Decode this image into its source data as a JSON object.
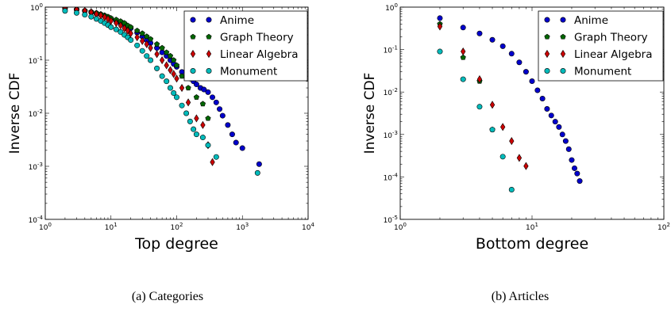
{
  "chart_data": [
    {
      "type": "scatter",
      "xlabel": "Top degree",
      "ylabel": "Inverse CDF",
      "xscale": "log",
      "yscale": "log",
      "xlim": [
        1,
        10000
      ],
      "ylim": [
        0.0001,
        1
      ],
      "xticks": [
        {
          "value": 1,
          "label": "10^0"
        },
        {
          "value": 10,
          "label": "10^1"
        },
        {
          "value": 100,
          "label": "10^2"
        },
        {
          "value": 1000,
          "label": "10^3"
        },
        {
          "value": 10000,
          "label": "10^4"
        }
      ],
      "yticks": [
        {
          "value": 0.0001,
          "label": "10^-4"
        },
        {
          "value": 0.001,
          "label": "10^-3"
        },
        {
          "value": 0.01,
          "label": "10^-2"
        },
        {
          "value": 0.1,
          "label": "10^-1"
        },
        {
          "value": 1,
          "label": "10^0"
        }
      ],
      "legend_position": "top-right",
      "caption": "(a) Categories",
      "series": [
        {
          "name": "Anime",
          "color": "#0000cc",
          "marker": "circle",
          "x": [
            2,
            3,
            4,
            5,
            6,
            7,
            8,
            9,
            10,
            12,
            14,
            16,
            18,
            20,
            25,
            30,
            35,
            40,
            50,
            60,
            70,
            80,
            90,
            100,
            120,
            140,
            160,
            180,
            200,
            230,
            260,
            300,
            350,
            400,
            450,
            500,
            600,
            700,
            800,
            1000,
            1800
          ],
          "y": [
            0.95,
            0.9,
            0.85,
            0.8,
            0.75,
            0.72,
            0.68,
            0.65,
            0.6,
            0.55,
            0.5,
            0.47,
            0.44,
            0.4,
            0.33,
            0.28,
            0.24,
            0.21,
            0.17,
            0.14,
            0.12,
            0.1,
            0.085,
            0.075,
            0.06,
            0.05,
            0.045,
            0.04,
            0.035,
            0.03,
            0.028,
            0.025,
            0.02,
            0.016,
            0.012,
            0.009,
            0.006,
            0.004,
            0.0028,
            0.0022,
            0.0011
          ]
        },
        {
          "name": "Graph Theory",
          "color": "#006600",
          "marker": "pentagon",
          "x": [
            2,
            3,
            4,
            5,
            6,
            7,
            8,
            9,
            10,
            12,
            14,
            16,
            18,
            20,
            25,
            30,
            35,
            40,
            50,
            60,
            70,
            80,
            90,
            100,
            120,
            150,
            200,
            250,
            300
          ],
          "y": [
            0.95,
            0.9,
            0.86,
            0.82,
            0.78,
            0.74,
            0.7,
            0.66,
            0.62,
            0.58,
            0.54,
            0.5,
            0.45,
            0.42,
            0.36,
            0.32,
            0.28,
            0.25,
            0.2,
            0.17,
            0.14,
            0.12,
            0.1,
            0.08,
            0.05,
            0.03,
            0.02,
            0.015,
            0.008
          ]
        },
        {
          "name": "Linear Algebra",
          "color": "#cc0000",
          "marker": "diamond",
          "x": [
            2,
            3,
            4,
            5,
            6,
            7,
            8,
            9,
            10,
            12,
            14,
            16,
            18,
            20,
            25,
            30,
            35,
            40,
            50,
            60,
            70,
            80,
            90,
            100,
            120,
            150,
            200,
            250,
            300,
            350
          ],
          "y": [
            0.95,
            0.9,
            0.85,
            0.8,
            0.74,
            0.7,
            0.65,
            0.6,
            0.55,
            0.5,
            0.45,
            0.4,
            0.36,
            0.32,
            0.27,
            0.23,
            0.2,
            0.17,
            0.13,
            0.1,
            0.08,
            0.065,
            0.055,
            0.045,
            0.03,
            0.016,
            0.008,
            0.006,
            0.0025,
            0.0012
          ]
        },
        {
          "name": "Monument",
          "color": "#00bbbb",
          "marker": "circle",
          "x": [
            2,
            3,
            4,
            5,
            6,
            7,
            8,
            9,
            10,
            12,
            14,
            16,
            18,
            20,
            25,
            30,
            35,
            40,
            50,
            60,
            70,
            80,
            90,
            100,
            120,
            140,
            160,
            180,
            200,
            250,
            300,
            400,
            1700
          ],
          "y": [
            0.85,
            0.78,
            0.72,
            0.66,
            0.6,
            0.55,
            0.5,
            0.46,
            0.42,
            0.38,
            0.34,
            0.3,
            0.27,
            0.24,
            0.19,
            0.15,
            0.12,
            0.1,
            0.07,
            0.05,
            0.04,
            0.03,
            0.024,
            0.02,
            0.014,
            0.01,
            0.007,
            0.005,
            0.004,
            0.0035,
            0.0025,
            0.0015,
            0.00075
          ]
        }
      ]
    },
    {
      "type": "scatter",
      "xlabel": "Bottom degree",
      "ylabel": "Inverse CDF",
      "xscale": "log",
      "yscale": "log",
      "xlim": [
        1,
        100
      ],
      "ylim": [
        1e-05,
        1
      ],
      "xticks": [
        {
          "value": 1,
          "label": "10^0"
        },
        {
          "value": 10,
          "label": "10^1"
        },
        {
          "value": 100,
          "label": "10^2"
        }
      ],
      "yticks": [
        {
          "value": 1e-05,
          "label": "10^-5"
        },
        {
          "value": 0.0001,
          "label": "10^-4"
        },
        {
          "value": 0.001,
          "label": "10^-3"
        },
        {
          "value": 0.01,
          "label": "10^-2"
        },
        {
          "value": 0.1,
          "label": "10^-1"
        },
        {
          "value": 1,
          "label": "10^0"
        }
      ],
      "legend_position": "top-right",
      "caption": "(b) Articles",
      "series": [
        {
          "name": "Anime",
          "color": "#0000cc",
          "marker": "circle",
          "x": [
            2,
            3,
            4,
            5,
            6,
            7,
            8,
            9,
            10,
            11,
            12,
            13,
            14,
            15,
            16,
            17,
            18,
            19,
            20,
            21,
            22,
            23
          ],
          "y": [
            0.55,
            0.33,
            0.24,
            0.17,
            0.12,
            0.08,
            0.05,
            0.03,
            0.018,
            0.011,
            0.007,
            0.004,
            0.0028,
            0.002,
            0.0015,
            0.001,
            0.0007,
            0.00045,
            0.00025,
            0.00016,
            0.00012,
            8e-05
          ]
        },
        {
          "name": "Graph Theory",
          "color": "#006600",
          "marker": "pentagon",
          "x": [
            2,
            3,
            4,
            5
          ],
          "y": [
            0.4,
            0.065,
            0.018,
            0.0013
          ]
        },
        {
          "name": "Linear Algebra",
          "color": "#cc0000",
          "marker": "diamond",
          "x": [
            2,
            3,
            4,
            5,
            6,
            7,
            8,
            9
          ],
          "y": [
            0.35,
            0.09,
            0.02,
            0.005,
            0.0015,
            0.0007,
            0.00028,
            0.00018
          ]
        },
        {
          "name": "Monument",
          "color": "#00bbbb",
          "marker": "circle",
          "x": [
            2,
            3,
            4,
            5,
            6,
            7
          ],
          "y": [
            0.09,
            0.02,
            0.0045,
            0.0013,
            0.0003,
            5e-05
          ]
        }
      ]
    }
  ]
}
